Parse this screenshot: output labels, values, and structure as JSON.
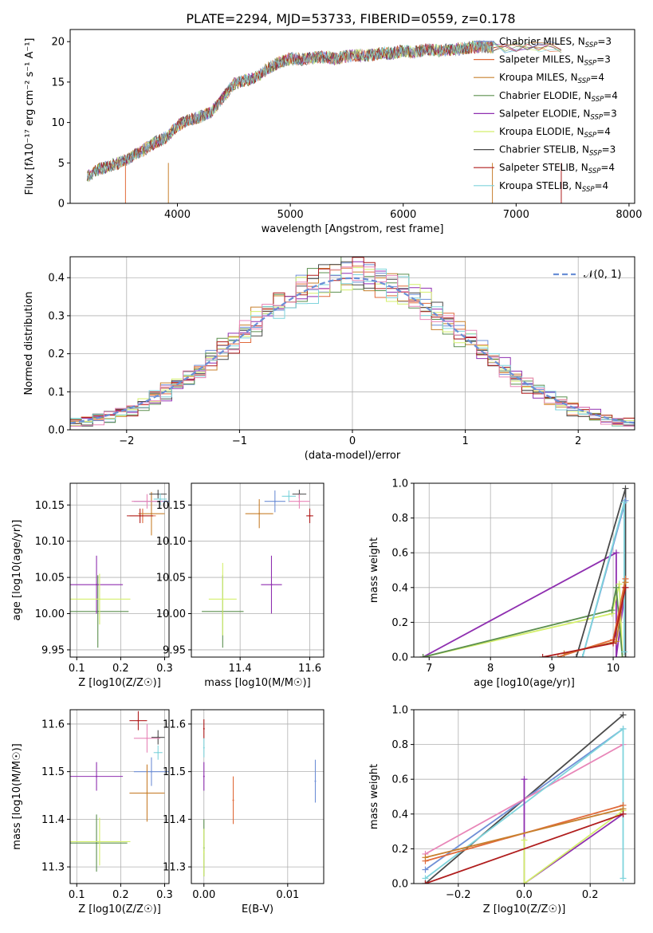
{
  "title": "PLATE=2294, MJD=53733, FIBERID=0559, z=0.178",
  "colors": {
    "chabrier_miles": "#6f8fd6",
    "salpeter_miles": "#e06a3a",
    "kroupa_miles": "#c8802e",
    "chabrier_elodie": "#5b8f4e",
    "salpeter_elodie": "#8f2fb0",
    "kroupa_elodie": "#d4ef6c",
    "chabrier_stelib": "#4a4a4a",
    "salpeter_stelib": "#b01d1d",
    "kroupa_stelib": "#7fd4dc",
    "pink": "#e886b8",
    "gaussian": "#6a8fd6"
  },
  "legend_spectrum": [
    {
      "label": "Chabrier MILES, N",
      "sub": "SSP",
      "tail": "=3",
      "color": "#6f8fd6"
    },
    {
      "label": "Salpeter MILES, N",
      "sub": "SSP",
      "tail": "=3",
      "color": "#e06a3a"
    },
    {
      "label": "Kroupa MILES, N",
      "sub": "SSP",
      "tail": "=4",
      "color": "#c8802e"
    },
    {
      "label": "Chabrier ELODIE, N",
      "sub": "SSP",
      "tail": "=4",
      "color": "#5b8f4e"
    },
    {
      "label": "Salpeter ELODIE, N",
      "sub": "SSP",
      "tail": "=3",
      "color": "#8f2fb0"
    },
    {
      "label": "Kroupa ELODIE, N",
      "sub": "SSP",
      "tail": "=4",
      "color": "#d4ef6c"
    },
    {
      "label": "Chabrier STELIB, N",
      "sub": "SSP",
      "tail": "=3",
      "color": "#4a4a4a"
    },
    {
      "label": "Salpeter STELIB, N",
      "sub": "SSP",
      "tail": "=4",
      "color": "#b01d1d"
    },
    {
      "label": "Kroupa STELIB, N",
      "sub": "SSP",
      "tail": "=4",
      "color": "#7fd4dc"
    }
  ],
  "legend_hist": {
    "label": "𝒩(0, 1)"
  },
  "chart_data": [
    {
      "type": "line",
      "panel": "spectrum",
      "xlabel": "wavelength [Angstrom, rest frame]",
      "ylabel": "Flux [fλ10⁻¹⁷ erg cm⁻² s⁻¹ A⁻¹]",
      "xlim": [
        3050,
        8050
      ],
      "ylim": [
        0,
        21.5
      ],
      "xticks": [
        4000,
        5000,
        6000,
        7000,
        8000
      ],
      "yticks": [
        0,
        5,
        10,
        15,
        20
      ],
      "grid": false,
      "legend": "upper-right",
      "x": [
        3200,
        3300,
        3400,
        3500,
        3600,
        3700,
        3800,
        3900,
        4000,
        4100,
        4200,
        4300,
        4400,
        4500,
        4600,
        4700,
        4800,
        4900,
        5000,
        5100,
        5200,
        5300,
        5400,
        5500,
        5600,
        5700,
        5800,
        5900,
        6000,
        6100,
        6200,
        6300,
        6400,
        6500,
        6600,
        6700,
        6800
      ],
      "y": [
        3.3,
        4.2,
        4.6,
        5.1,
        5.8,
        6.6,
        7.5,
        8.2,
        9.6,
        10.3,
        10.7,
        11.3,
        13.0,
        14.8,
        15.2,
        15.6,
        16.7,
        17.4,
        17.9,
        17.8,
        18.0,
        18.1,
        17.9,
        18.2,
        18.3,
        18.3,
        18.6,
        18.5,
        18.9,
        18.7,
        19.0,
        18.9,
        19.0,
        19.1,
        19.3,
        19.4,
        19.3
      ]
    },
    {
      "type": "area",
      "panel": "residual-histogram",
      "xlabel": "(data-model)/error",
      "ylabel": "Normed distribution",
      "xlim": [
        -2.5,
        2.5
      ],
      "ylim": [
        0,
        0.455
      ],
      "xticks": [
        -2,
        -1,
        0,
        1,
        2
      ],
      "yticks": [
        0.0,
        0.1,
        0.2,
        0.3,
        0.4
      ],
      "grid": true,
      "legend": "upper-right",
      "series": [
        {
          "name": "𝒩(0, 1)",
          "mean": 0,
          "sigma": 1
        }
      ]
    },
    {
      "type": "scatter",
      "panel": "age-vs-Z",
      "xlabel": "Z [log10(Z/Z☉)]",
      "ylabel": "age [log10(age/yr)]",
      "xlim": [
        0.085,
        0.31
      ],
      "ylim": [
        9.94,
        10.18
      ],
      "xticks": [
        0.1,
        0.2,
        0.3
      ],
      "yticks": [
        9.95,
        10.0,
        10.05,
        10.1,
        10.15
      ],
      "points": [
        {
          "x": 0.27,
          "y": 10.155,
          "xerr": 0.04,
          "yerr": 0.012,
          "color": "#6f8fd6"
        },
        {
          "x": 0.25,
          "y": 10.135,
          "xerr": 0.03,
          "yerr": 0.01,
          "color": "#e06a3a"
        },
        {
          "x": 0.27,
          "y": 10.138,
          "xerr": 0.03,
          "yerr": 0.03,
          "color": "#c8802e"
        },
        {
          "x": 0.148,
          "y": 10.003,
          "xerr": 0.07,
          "yerr": 0.05,
          "color": "#5b8f4e"
        },
        {
          "x": 0.145,
          "y": 10.04,
          "xerr": 0.06,
          "yerr": 0.04,
          "color": "#8f2fb0"
        },
        {
          "x": 0.152,
          "y": 10.02,
          "xerr": 0.07,
          "yerr": 0.035,
          "color": "#d4ef6c"
        },
        {
          "x": 0.285,
          "y": 10.165,
          "xerr": 0.02,
          "yerr": 0.006,
          "color": "#4a4a4a"
        },
        {
          "x": 0.244,
          "y": 10.135,
          "xerr": 0.03,
          "yerr": 0.01,
          "color": "#b01d1d"
        },
        {
          "x": 0.29,
          "y": 10.158,
          "xerr": 0.015,
          "yerr": 0.008,
          "color": "#7fd4dc"
        },
        {
          "x": 0.26,
          "y": 10.155,
          "xerr": 0.035,
          "yerr": 0.01,
          "color": "#e886b8"
        }
      ]
    },
    {
      "type": "scatter",
      "panel": "age-vs-mass",
      "xlabel": "mass [log10(M/M☉)]",
      "ylabel": "",
      "xlim": [
        11.26,
        11.64
      ],
      "ylim": [
        9.94,
        10.18
      ],
      "xticks": [
        11.4,
        11.6
      ],
      "yticks": [
        9.95,
        10.0,
        10.05,
        10.1,
        10.15
      ],
      "points": [
        {
          "x": 11.5,
          "y": 10.155,
          "xerr": 0.03,
          "yerr": 0.015,
          "color": "#6f8fd6"
        },
        {
          "x": 11.455,
          "y": 10.138,
          "xerr": 0.04,
          "yerr": 0.02,
          "color": "#c8802e"
        },
        {
          "x": 11.35,
          "y": 10.003,
          "xerr": 0.06,
          "yerr": 0.05,
          "color": "#5b8f4e"
        },
        {
          "x": 11.49,
          "y": 10.04,
          "xerr": 0.03,
          "yerr": 0.04,
          "color": "#8f2fb0"
        },
        {
          "x": 11.35,
          "y": 10.02,
          "xerr": 0.04,
          "yerr": 0.05,
          "color": "#d4ef6c"
        },
        {
          "x": 11.57,
          "y": 10.165,
          "xerr": 0.02,
          "yerr": 0.006,
          "color": "#4a4a4a"
        },
        {
          "x": 11.6,
          "y": 10.135,
          "xerr": 0.01,
          "yerr": 0.01,
          "color": "#b01d1d"
        },
        {
          "x": 11.54,
          "y": 10.162,
          "xerr": 0.02,
          "yerr": 0.008,
          "color": "#7fd4dc"
        },
        {
          "x": 11.57,
          "y": 10.155,
          "xerr": 0.03,
          "yerr": 0.01,
          "color": "#e886b8"
        }
      ]
    },
    {
      "type": "line",
      "panel": "mass-weight-vs-age",
      "xlabel": "age [log10(age/yr)]",
      "ylabel": "mass weight",
      "xlim": [
        6.75,
        10.35
      ],
      "ylim": [
        0,
        1.0
      ],
      "xticks": [
        7,
        8,
        9,
        10
      ],
      "yticks": [
        0.0,
        0.2,
        0.4,
        0.6,
        0.8,
        1.0
      ],
      "grid": true,
      "series": [
        {
          "color": "#8f2fb0",
          "x": [
            6.9,
            10.05,
            10.05,
            10.2
          ],
          "y": [
            0.0,
            0.6,
            0.0,
            0.4
          ]
        },
        {
          "color": "#d4ef6c",
          "x": [
            6.9,
            9.98,
            10.1,
            10.15
          ],
          "y": [
            0.0,
            0.25,
            0.42,
            0.0
          ]
        },
        {
          "color": "#5b8f4e",
          "x": [
            6.9,
            9.98,
            10.05,
            10.15
          ],
          "y": [
            0.0,
            0.27,
            0.4,
            0.0
          ]
        },
        {
          "color": "#4a4a4a",
          "x": [
            9.4,
            10.2,
            10.2
          ],
          "y": [
            0.0,
            0.97,
            0.0
          ]
        },
        {
          "color": "#6f8fd6",
          "x": [
            9.5,
            10.2
          ],
          "y": [
            0.0,
            0.9
          ]
        },
        {
          "color": "#7fd4dc",
          "x": [
            9.5,
            10.18,
            10.18
          ],
          "y": [
            0.0,
            0.89,
            0.03
          ]
        },
        {
          "color": "#e06a3a",
          "x": [
            9.1,
            10.0,
            10.2
          ],
          "y": [
            0.0,
            0.1,
            0.45
          ]
        },
        {
          "color": "#c8802e",
          "x": [
            9.2,
            10.05,
            10.2
          ],
          "y": [
            0.02,
            0.09,
            0.43
          ]
        },
        {
          "color": "#b01d1d",
          "x": [
            8.85,
            10.0,
            10.2
          ],
          "y": [
            0.0,
            0.08,
            0.4
          ]
        }
      ]
    },
    {
      "type": "scatter",
      "panel": "mass-vs-Z",
      "xlabel": "Z [log10(Z/Z☉)]",
      "ylabel": "mass [log10(M/M☉)]",
      "xlim": [
        0.085,
        0.31
      ],
      "ylim": [
        11.265,
        11.63
      ],
      "xticks": [
        0.1,
        0.2,
        0.3
      ],
      "yticks": [
        11.3,
        11.4,
        11.5,
        11.6
      ],
      "points": [
        {
          "x": 0.27,
          "y": 11.5,
          "xerr": 0.04,
          "yerr": 0.03,
          "color": "#6f8fd6"
        },
        {
          "x": 0.26,
          "y": 11.455,
          "xerr": 0.04,
          "yerr": 0.06,
          "color": "#c8802e"
        },
        {
          "x": 0.145,
          "y": 11.35,
          "xerr": 0.07,
          "yerr": 0.06,
          "color": "#5b8f4e"
        },
        {
          "x": 0.145,
          "y": 11.49,
          "xerr": 0.06,
          "yerr": 0.03,
          "color": "#8f2fb0"
        },
        {
          "x": 0.152,
          "y": 11.353,
          "xerr": 0.07,
          "yerr": 0.05,
          "color": "#d4ef6c"
        },
        {
          "x": 0.285,
          "y": 11.572,
          "xerr": 0.015,
          "yerr": 0.015,
          "color": "#4a4a4a"
        },
        {
          "x": 0.24,
          "y": 11.607,
          "xerr": 0.02,
          "yerr": 0.02,
          "color": "#b01d1d"
        },
        {
          "x": 0.285,
          "y": 11.54,
          "xerr": 0.01,
          "yerr": 0.015,
          "color": "#7fd4dc"
        },
        {
          "x": 0.26,
          "y": 11.57,
          "xerr": 0.03,
          "yerr": 0.03,
          "color": "#e886b8"
        }
      ]
    },
    {
      "type": "scatter",
      "panel": "mass-vs-EBV",
      "xlabel": "E(B-V)",
      "ylabel": "",
      "xlim": [
        -0.0015,
        0.0143
      ],
      "ylim": [
        11.265,
        11.63
      ],
      "xticks": [
        0.0,
        0.01
      ],
      "yticks": [
        11.3,
        11.4,
        11.5,
        11.6
      ],
      "points": [
        {
          "x": 0.0133,
          "y": 11.48,
          "xerr": 0,
          "yerr": 0.045,
          "color": "#6f8fd6"
        },
        {
          "x": 0.0035,
          "y": 11.44,
          "xerr": 0,
          "yerr": 0.05,
          "color": "#e06a3a"
        },
        {
          "x": 0.0,
          "y": 11.34,
          "xerr": 0,
          "yerr": 0.06,
          "color": "#5b8f4e"
        },
        {
          "x": 0.0,
          "y": 11.49,
          "xerr": 0,
          "yerr": 0.03,
          "color": "#8f2fb0"
        },
        {
          "x": 0.0,
          "y": 11.33,
          "xerr": 0,
          "yerr": 0.05,
          "color": "#d4ef6c"
        },
        {
          "x": 0.0,
          "y": 11.59,
          "xerr": 0,
          "yerr": 0.02,
          "color": "#b01d1d"
        },
        {
          "x": 0.0,
          "y": 11.55,
          "xerr": 0,
          "yerr": 0.02,
          "color": "#7fd4dc"
        }
      ]
    },
    {
      "type": "line",
      "panel": "mass-weight-vs-Z",
      "xlabel": "Z [log10(Z/Z☉)]",
      "ylabel": "mass weight",
      "xlim": [
        -0.335,
        0.335
      ],
      "ylim": [
        0,
        1.0
      ],
      "xticks": [
        -0.2,
        0.0,
        0.2
      ],
      "yticks": [
        0.0,
        0.2,
        0.4,
        0.6,
        0.8,
        1.0
      ],
      "grid": true,
      "series": [
        {
          "color": "#4a4a4a",
          "x": [
            -0.3,
            0.3
          ],
          "y": [
            0.0,
            0.97
          ]
        },
        {
          "color": "#6f8fd6",
          "x": [
            -0.3,
            0.3
          ],
          "y": [
            0.08,
            0.89
          ]
        },
        {
          "color": "#e886b8",
          "x": [
            -0.3,
            0.3
          ],
          "y": [
            0.17,
            0.8
          ]
        },
        {
          "color": "#7fd4dc",
          "x": [
            -0.3,
            0.3,
            0.3
          ],
          "y": [
            0.03,
            0.89,
            0.03
          ]
        },
        {
          "color": "#8f2fb0",
          "x": [
            0.0,
            0.0,
            0.3
          ],
          "y": [
            0.6,
            0.0,
            0.4
          ]
        },
        {
          "color": "#d4ef6c",
          "x": [
            0.0,
            0.0,
            0.3
          ],
          "y": [
            0.25,
            0.0,
            0.42
          ]
        },
        {
          "color": "#e06a3a",
          "x": [
            -0.3,
            0.3
          ],
          "y": [
            0.13,
            0.45
          ]
        },
        {
          "color": "#c8802e",
          "x": [
            -0.3,
            0.3
          ],
          "y": [
            0.15,
            0.43
          ]
        },
        {
          "color": "#b01d1d",
          "x": [
            -0.3,
            0.3
          ],
          "y": [
            0.0,
            0.4
          ]
        }
      ]
    }
  ]
}
